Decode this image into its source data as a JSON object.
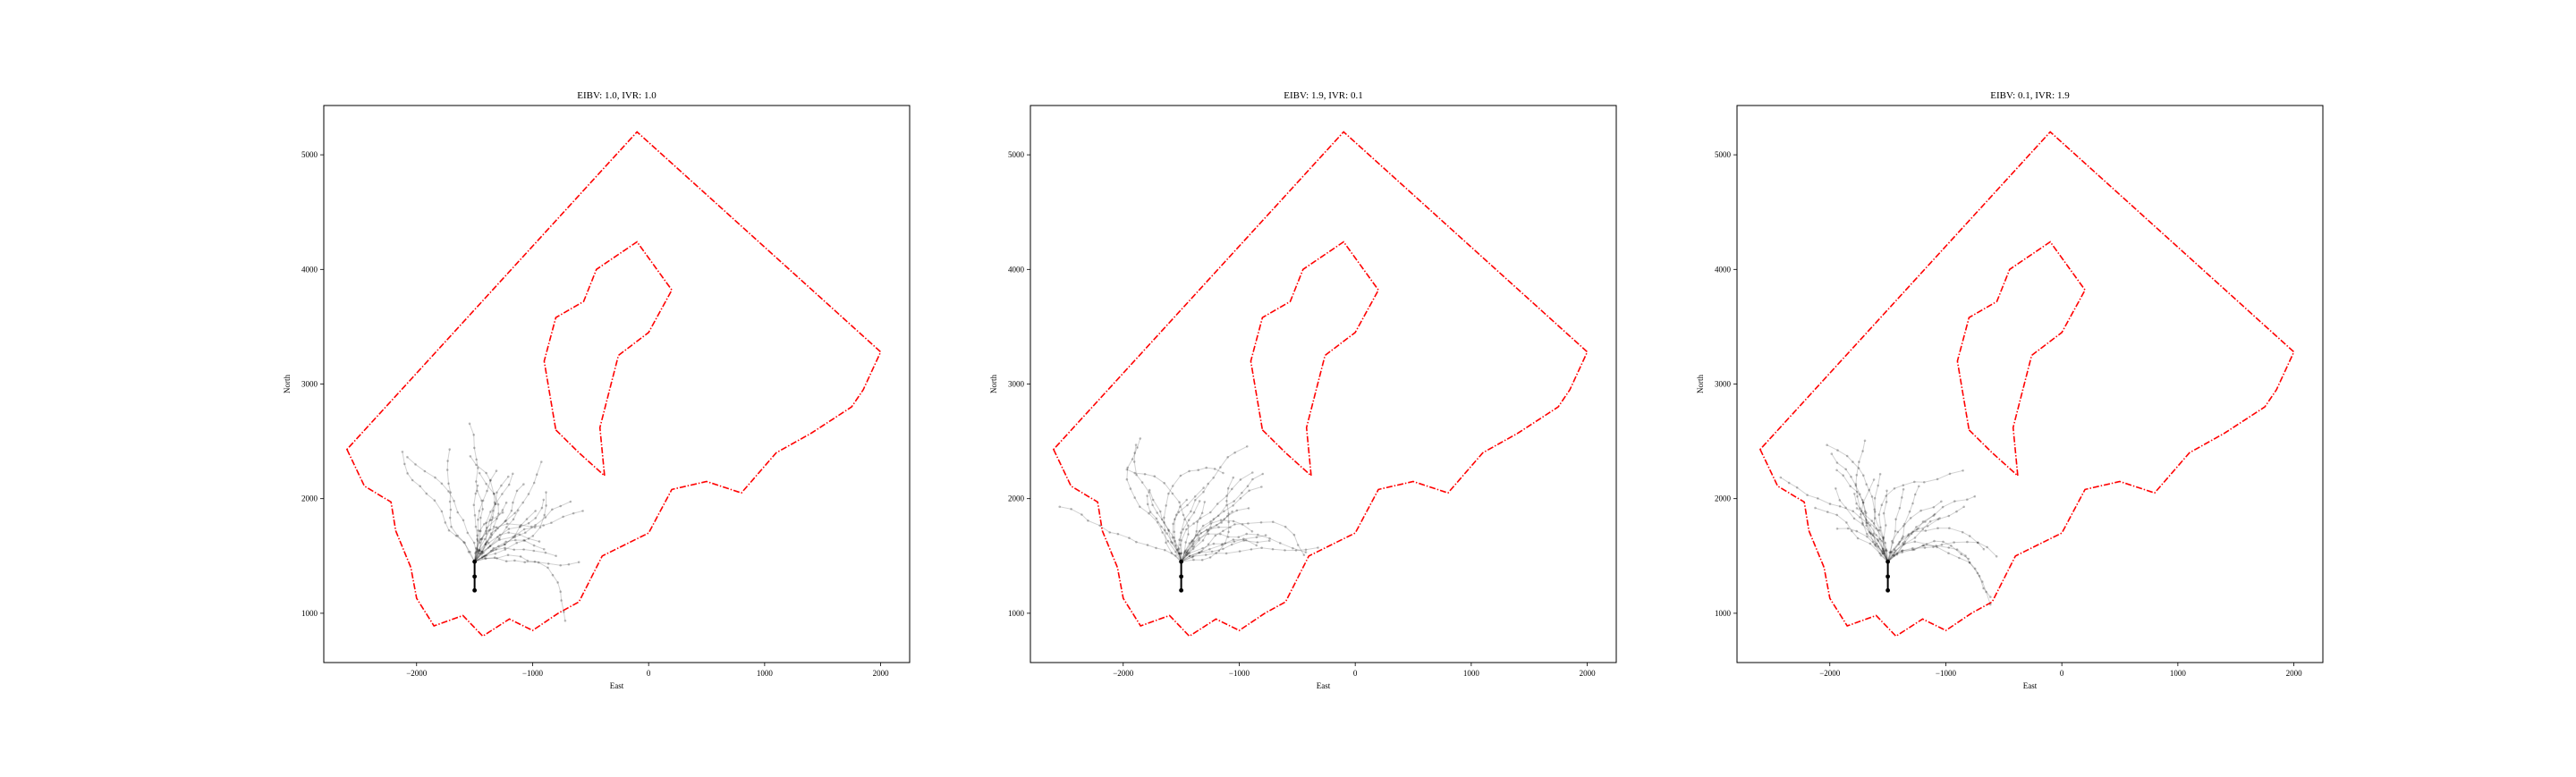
{
  "chart_data": [
    {
      "type": "line",
      "title": "EIBV: 1.0, IVR: 1.0",
      "xlabel": "East",
      "ylabel": "North",
      "xlim": [
        -2800,
        2250
      ],
      "ylim": [
        570,
        5430
      ],
      "xticks": [
        -2000,
        -1000,
        0,
        1000,
        2000
      ],
      "xtick_labels": [
        "−2000",
        "−1000",
        "0",
        "1000",
        "2000"
      ],
      "yticks": [
        1000,
        2000,
        3000,
        4000,
        5000
      ],
      "ytick_labels": [
        "1000",
        "2000",
        "3000",
        "4000",
        "5000"
      ],
      "grid": false,
      "start_point": [
        -1500,
        1200
      ],
      "trajectory_seed": 11,
      "trajectory_heading": 60,
      "trajectory_count": 26
    },
    {
      "type": "line",
      "title": "EIBV: 1.9, IVR: 0.1",
      "xlabel": "East",
      "ylabel": "North",
      "xlim": [
        -2800,
        2250
      ],
      "ylim": [
        570,
        5430
      ],
      "xticks": [
        -2000,
        -1000,
        0,
        1000,
        2000
      ],
      "xtick_labels": [
        "−2000",
        "−1000",
        "0",
        "1000",
        "2000"
      ],
      "yticks": [
        1000,
        2000,
        3000,
        4000,
        5000
      ],
      "ytick_labels": [
        "1000",
        "2000",
        "3000",
        "4000",
        "5000"
      ],
      "grid": false,
      "start_point": [
        -1500,
        1200
      ],
      "trajectory_seed": 23,
      "trajectory_heading": 80,
      "trajectory_count": 26
    },
    {
      "type": "line",
      "title": "EIBV: 0.1, IVR: 1.9",
      "xlabel": "East",
      "ylabel": "North",
      "xlim": [
        -2800,
        2250
      ],
      "ylim": [
        570,
        5430
      ],
      "xticks": [
        -2000,
        -1000,
        0,
        1000,
        2000
      ],
      "xtick_labels": [
        "−2000",
        "−1000",
        "0",
        "1000",
        "2000"
      ],
      "yticks": [
        1000,
        2000,
        3000,
        4000,
        5000
      ],
      "ytick_labels": [
        "1000",
        "2000",
        "3000",
        "4000",
        "5000"
      ],
      "grid": false,
      "start_point": [
        -1500,
        1200
      ],
      "trajectory_seed": 37,
      "trajectory_heading": 95,
      "trajectory_count": 26
    }
  ],
  "boundary": {
    "color": "#ff0000",
    "outer": [
      [
        -2600,
        2430
      ],
      [
        -2450,
        2110
      ],
      [
        -2220,
        1970
      ],
      [
        -2180,
        1720
      ],
      [
        -2050,
        1400
      ],
      [
        -2000,
        1130
      ],
      [
        -1850,
        890
      ],
      [
        -1600,
        980
      ],
      [
        -1430,
        800
      ],
      [
        -1200,
        950
      ],
      [
        -1000,
        850
      ],
      [
        -780,
        1000
      ],
      [
        -600,
        1100
      ],
      [
        -400,
        1500
      ],
      [
        0,
        1700
      ],
      [
        200,
        2080
      ],
      [
        500,
        2150
      ],
      [
        800,
        2050
      ],
      [
        1100,
        2400
      ],
      [
        1400,
        2570
      ],
      [
        1750,
        2800
      ],
      [
        1850,
        2950
      ],
      [
        2000,
        3280
      ],
      [
        -100,
        5200
      ]
    ],
    "inner": [
      [
        -800,
        2600
      ],
      [
        -600,
        2400
      ],
      [
        -380,
        2200
      ],
      [
        -420,
        2620
      ],
      [
        -260,
        3250
      ],
      [
        0,
        3450
      ],
      [
        200,
        3820
      ],
      [
        -100,
        4240
      ],
      [
        -450,
        4000
      ],
      [
        -560,
        3720
      ],
      [
        -800,
        3580
      ],
      [
        -900,
        3200
      ]
    ]
  },
  "trajectory_color": "#000000",
  "start_color": "#000000"
}
